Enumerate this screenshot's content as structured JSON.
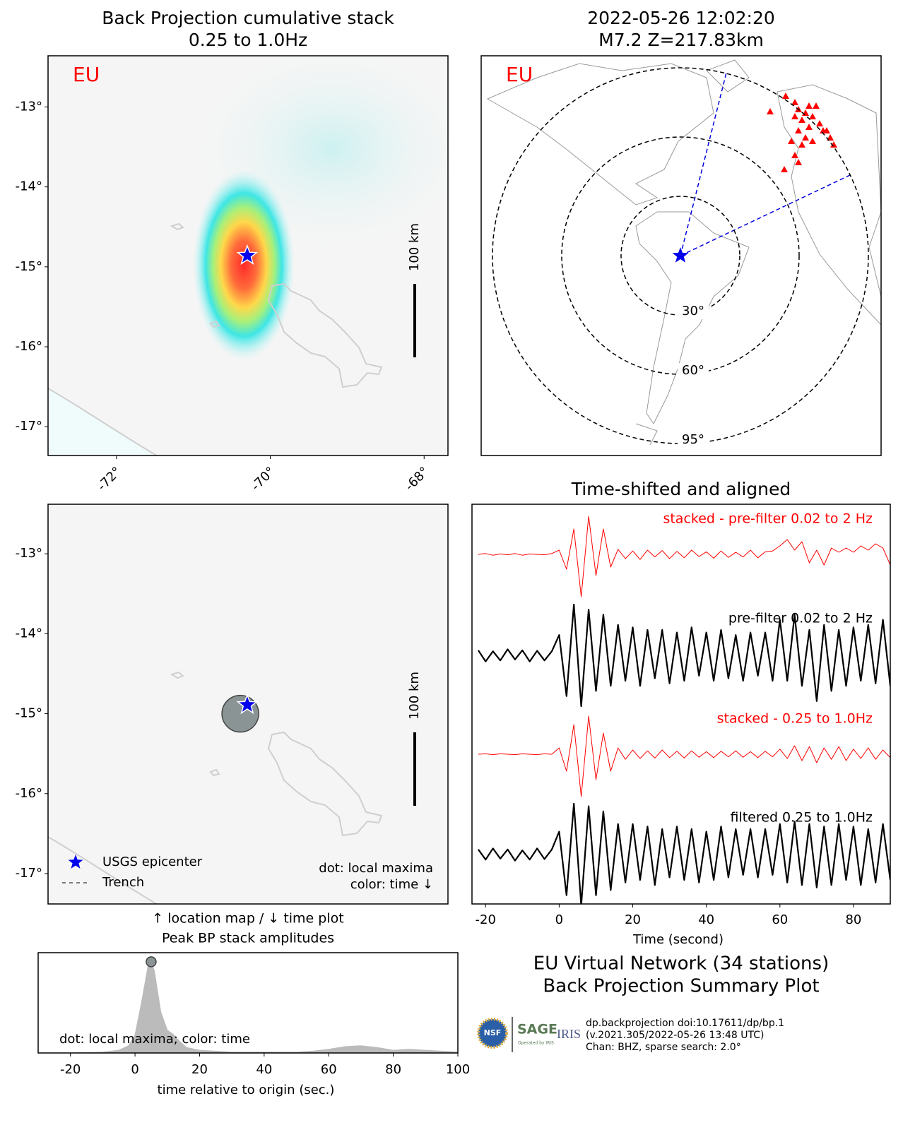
{
  "chart_data": [
    {
      "type": "map",
      "title": [
        "Back Projection cumulative stack",
        "0.25 to 1.0Hz"
      ],
      "label": "EU",
      "xlim": [
        -72.89,
        -67.69
      ],
      "ylim": [
        -17.36,
        -12.36
      ],
      "xticks": [
        {
          "value": -72,
          "label": "-72°"
        },
        {
          "value": -70,
          "label": "-70°"
        },
        {
          "value": -68,
          "label": "-68°"
        }
      ],
      "yticks": [
        {
          "value": -13,
          "label": "-13°"
        },
        {
          "value": -14,
          "label": "-14°"
        },
        {
          "value": -15,
          "label": "-15°"
        },
        {
          "value": -16,
          "label": "-16°"
        },
        {
          "value": -17,
          "label": "-17°"
        }
      ],
      "scale_bar": "100 km",
      "epicenter": {
        "lon": -70.3,
        "lat": -14.86
      }
    },
    {
      "type": "station_map",
      "title": [
        "2022-05-26 12:02:20",
        "M7.2 Z=217.83km"
      ],
      "label": "EU",
      "rings": [
        {
          "value": 30,
          "label": "30°"
        },
        {
          "value": 60,
          "label": "60°"
        },
        {
          "value": 95,
          "label": "95°"
        }
      ]
    },
    {
      "type": "map",
      "xlim": [
        -72.89,
        -67.69
      ],
      "ylim": [
        -17.38,
        -12.38
      ],
      "yticks": [
        {
          "value": -13,
          "label": "-13°"
        },
        {
          "value": -14,
          "label": "-14°"
        },
        {
          "value": -15,
          "label": "-15°"
        },
        {
          "value": -16,
          "label": "-16°"
        },
        {
          "value": -17,
          "label": "-17°"
        }
      ],
      "xlabel": "↑ location map / ↓ time plot",
      "scale_bar": "100 km",
      "epicenter": {
        "lon": -70.3,
        "lat": -14.89
      },
      "local_maximum": {
        "lon": -70.39,
        "lat": -15.0
      },
      "legend": [
        "USGS epicenter",
        "Trench"
      ],
      "annotations": [
        "dot: local maxima",
        "color: time ↓"
      ]
    },
    {
      "type": "area",
      "title": "Peak BP stack amplitudes",
      "xlabel": "time relative to origin (sec.)",
      "color": "#bbbbbb",
      "x": [
        -30,
        -20,
        -10,
        -5,
        -2,
        0,
        2,
        4,
        5,
        6,
        8,
        10,
        12,
        14,
        16,
        20,
        25,
        30,
        40,
        50,
        55,
        60,
        65,
        70,
        75,
        80,
        85,
        90,
        95,
        100
      ],
      "values": [
        0,
        0,
        0.01,
        0.03,
        0.08,
        0.2,
        0.55,
        0.95,
        1.0,
        0.9,
        0.45,
        0.25,
        0.2,
        0.12,
        0.06,
        0.03,
        0.02,
        0.01,
        0.01,
        0.01,
        0.02,
        0.04,
        0.07,
        0.08,
        0.06,
        0.03,
        0.04,
        0.03,
        0.02,
        0.01
      ],
      "xlim": [
        -30,
        100
      ],
      "ylim": [
        0,
        1.1
      ],
      "xticks": [
        -20,
        0,
        20,
        40,
        60,
        80,
        100
      ],
      "annotation": "dot: local maxima; color: time",
      "local_maximum": {
        "x": 5,
        "y": 1.0
      }
    },
    {
      "type": "traces",
      "title": "Time-shifted and aligned",
      "xlabel": "Time (second)",
      "xlim": [
        -23.7,
        90
      ],
      "xticks": [
        -20,
        0,
        20,
        40,
        60,
        80
      ],
      "x": [
        -22,
        -20,
        -18,
        -16,
        -14,
        -12,
        -10,
        -8,
        -6,
        -4,
        -2,
        0,
        2,
        4,
        6,
        8,
        10,
        12,
        14,
        16,
        18,
        20,
        22,
        24,
        26,
        28,
        30,
        32,
        34,
        36,
        38,
        40,
        42,
        44,
        46,
        48,
        50,
        52,
        54,
        56,
        58,
        60,
        62,
        64,
        66,
        68,
        70,
        72,
        74,
        76,
        78,
        80,
        82,
        84,
        86,
        88,
        90
      ],
      "series": [
        {
          "name": "stacked - pre-filter 0.02 to 2 Hz",
          "color": "#ff0000",
          "values": [
            0,
            0.02,
            -0.02,
            0.01,
            -0.01,
            0.02,
            -0.02,
            0.01,
            0,
            -0.01,
            0.02,
            0.1,
            -0.35,
            0.6,
            -1.0,
            0.9,
            -0.5,
            0.6,
            -0.3,
            0.12,
            -0.1,
            0.08,
            -0.12,
            0.1,
            -0.06,
            0.09,
            -0.1,
            0.07,
            -0.08,
            0.1,
            -0.05,
            0.06,
            -0.09,
            0.08,
            -0.07,
            0.05,
            -0.06,
            0.1,
            -0.08,
            0.06,
            0.08,
            0.2,
            0.35,
            0.1,
            0.3,
            -0.2,
            0.1,
            -0.25,
            0.15,
            0.05,
            0.15,
            0.05,
            0.2,
            0.1,
            0.25,
            0.15,
            -0.25
          ]
        },
        {
          "name": "pre-filter 0.02 to 2 Hz",
          "color": "#000000",
          "values": [
            0.1,
            -0.12,
            0.08,
            -0.1,
            0.12,
            -0.08,
            0.1,
            -0.12,
            0.09,
            -0.1,
            0.08,
            0.4,
            -0.8,
            1.0,
            -1.0,
            0.9,
            -0.7,
            0.8,
            -0.6,
            0.6,
            -0.5,
            0.55,
            -0.6,
            0.5,
            -0.45,
            0.5,
            -0.55,
            0.45,
            -0.5,
            0.55,
            -0.4,
            0.45,
            -0.5,
            0.5,
            -0.45,
            0.4,
            -0.5,
            0.45,
            -0.4,
            0.45,
            -0.5,
            0.7,
            -0.5,
            0.8,
            -0.6,
            0.5,
            -0.9,
            0.6,
            -0.7,
            0.5,
            -0.6,
            0.55,
            -0.5,
            0.6,
            -0.55,
            0.7,
            -0.6
          ]
        },
        {
          "name": "stacked - 0.25 to 1.0Hz",
          "color": "#ff0000",
          "values": [
            0,
            0.01,
            -0.01,
            0.01,
            0,
            -0.01,
            0.01,
            0,
            -0.01,
            0.01,
            0,
            0.15,
            -0.4,
            0.7,
            -1.0,
            0.9,
            -0.6,
            0.5,
            -0.4,
            0.15,
            -0.12,
            0.1,
            -0.1,
            0.08,
            -0.09,
            0.1,
            -0.08,
            0.07,
            -0.09,
            0.08,
            -0.07,
            0.06,
            -0.08,
            0.07,
            -0.06,
            0.08,
            -0.07,
            0.06,
            -0.08,
            0.07,
            -0.06,
            0.12,
            -0.1,
            0.2,
            -0.15,
            0.18,
            -0.2,
            0.15,
            -0.12,
            0.18,
            -0.15,
            0.12,
            -0.1,
            0.15,
            -0.12,
            0.1,
            -0.08
          ]
        },
        {
          "name": "filtered 0.25 to 1.0Hz",
          "color": "#000000",
          "values": [
            0.1,
            -0.1,
            0.12,
            -0.08,
            0.1,
            -0.12,
            0.08,
            -0.1,
            0.12,
            -0.09,
            0.1,
            0.45,
            -0.8,
            1.0,
            -1.0,
            0.95,
            -0.8,
            0.85,
            -0.7,
            0.6,
            -0.55,
            0.6,
            -0.5,
            0.55,
            -0.6,
            0.5,
            -0.45,
            0.55,
            -0.5,
            0.5,
            -0.55,
            0.45,
            -0.5,
            0.55,
            -0.45,
            0.5,
            -0.4,
            0.5,
            -0.45,
            0.5,
            -0.4,
            0.6,
            -0.55,
            0.65,
            -0.6,
            0.6,
            -0.65,
            0.55,
            -0.6,
            0.6,
            -0.5,
            0.55,
            -0.6,
            0.5,
            -0.55,
            0.6,
            -0.5
          ]
        }
      ]
    }
  ],
  "footer": {
    "title": [
      "EU Virtual Network (34 stations)",
      "Back Projection Summary Plot"
    ],
    "logos": [
      "NSF",
      "SAGE",
      "Operated by IRIS",
      "IRIS"
    ],
    "credits": [
      "dp.backprojection doi:10.17611/dp/bp.1",
      "(v.2021.305/2022-05-26 13:48 UTC)",
      "Chan: BHZ, sparse search: 2.0°"
    ]
  }
}
